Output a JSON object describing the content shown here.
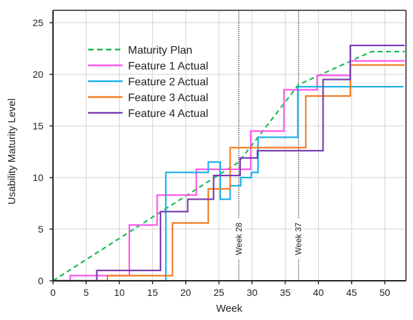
{
  "chart_data": {
    "type": "line",
    "title": "",
    "xlabel": "Week",
    "ylabel": "Usability Maturity Level",
    "xlim": [
      0,
      53.2
    ],
    "ylim": [
      0,
      26.2
    ],
    "xticks": [
      0,
      5,
      10,
      15,
      20,
      25,
      30,
      35,
      40,
      45,
      50
    ],
    "yticks": [
      0,
      5,
      10,
      15,
      20,
      25
    ],
    "grid": true,
    "legend": "top-left",
    "markers": [
      {
        "label": "Week 28",
        "x": 28
      },
      {
        "label": "Week 37",
        "x": 37
      }
    ],
    "series": [
      {
        "name": "Maturity Plan",
        "color": "#1db954",
        "style": "dashed",
        "step": false,
        "points": [
          [
            0,
            0
          ],
          [
            28,
            11.5
          ],
          [
            37,
            19
          ],
          [
            48,
            22.2
          ],
          [
            53,
            22.2
          ]
        ]
      },
      {
        "name": "Feature 1 Actual",
        "color": "#ff55ee",
        "style": "solid",
        "step": true,
        "points": [
          [
            0,
            0
          ],
          [
            2.6,
            0.5
          ],
          [
            11.5,
            5.4
          ],
          [
            15.7,
            8.3
          ],
          [
            21.6,
            10.8
          ],
          [
            29.8,
            14.5
          ],
          [
            34.8,
            18.5
          ],
          [
            39.8,
            19.9
          ],
          [
            44.8,
            21.3
          ],
          [
            53,
            21.3
          ]
        ]
      },
      {
        "name": "Feature 2 Actual",
        "color": "#1ab0ea",
        "style": "solid",
        "step": true,
        "points": [
          [
            0,
            0
          ],
          [
            17.0,
            10.5
          ],
          [
            23.4,
            11.5
          ],
          [
            25.2,
            7.9
          ],
          [
            26.7,
            9.2
          ],
          [
            28.3,
            10.0
          ],
          [
            29.9,
            10.5
          ],
          [
            30.9,
            13.9
          ],
          [
            36.9,
            18.8
          ],
          [
            52.8,
            18.8
          ]
        ]
      },
      {
        "name": "Feature 3 Actual",
        "color": "#f47a20",
        "style": "solid",
        "step": true,
        "points": [
          [
            0,
            0
          ],
          [
            8.2,
            0.5
          ],
          [
            18.0,
            5.6
          ],
          [
            23.4,
            8.9
          ],
          [
            26.7,
            12.9
          ],
          [
            38.1,
            17.9
          ],
          [
            44.8,
            20.9
          ],
          [
            53,
            20.9
          ]
        ]
      },
      {
        "name": "Feature 4 Actual",
        "color": "#7a3cb0",
        "style": "solid",
        "step": true,
        "points": [
          [
            0,
            0
          ],
          [
            6.6,
            1.0
          ],
          [
            16.2,
            6.7
          ],
          [
            20.3,
            7.9
          ],
          [
            24.2,
            10.2
          ],
          [
            28.2,
            11.9
          ],
          [
            30.8,
            12.6
          ],
          [
            40.7,
            19.5
          ],
          [
            44.8,
            22.8
          ],
          [
            53,
            22.8
          ]
        ]
      }
    ]
  }
}
